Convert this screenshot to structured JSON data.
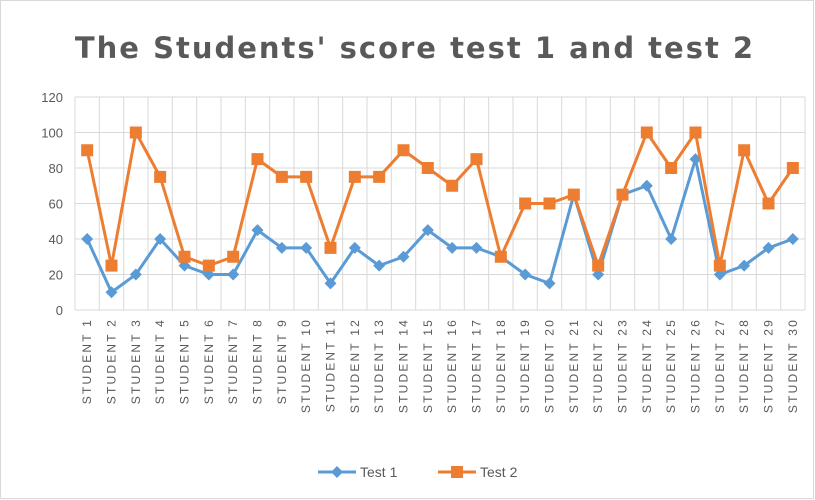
{
  "chart_data": {
    "type": "line",
    "title": "The Students' score test 1 and test 2",
    "categories": [
      "STUDENT 1",
      "STUDENT 2",
      "STUDENT 3",
      "STUDENT 4",
      "STUDENT 5",
      "STUDENT 6",
      "STUDENT 7",
      "STUDENT 8",
      "STUDENT 9",
      "STUDENT 10",
      "STUDENT 11",
      "STUDENT 12",
      "STUDENT 13",
      "STUDENT 14",
      "STUDENT 15",
      "STUDENT 16",
      "STUDENT 17",
      "STUDENT 18",
      "STUDENT 19",
      "STUDENT 20",
      "STUDENT 21",
      "STUDENT 22",
      "STUDENT 23",
      "STUDENT 24",
      "STUDENT 25",
      "STUDENT 26",
      "STUDENT 27",
      "STUDENT 28",
      "STUDENT 29",
      "STUDENT 30"
    ],
    "series": [
      {
        "name": "Test 1",
        "color": "#5b9bd5",
        "marker": "diamond",
        "values": [
          40,
          10,
          20,
          40,
          25,
          20,
          20,
          45,
          35,
          35,
          15,
          35,
          25,
          30,
          45,
          35,
          35,
          30,
          20,
          15,
          65,
          20,
          65,
          70,
          40,
          85,
          20,
          25,
          35,
          40
        ]
      },
      {
        "name": "Test 2",
        "color": "#ed7d31",
        "marker": "square",
        "values": [
          90,
          25,
          100,
          75,
          30,
          25,
          30,
          85,
          75,
          75,
          35,
          75,
          75,
          90,
          80,
          70,
          85,
          30,
          60,
          60,
          65,
          25,
          65,
          100,
          80,
          100,
          25,
          90,
          60,
          80
        ]
      }
    ],
    "ylim": [
      0,
      120
    ],
    "yticks": [
      0,
      20,
      40,
      60,
      80,
      100,
      120
    ],
    "grid": true,
    "legend": "bottom"
  }
}
